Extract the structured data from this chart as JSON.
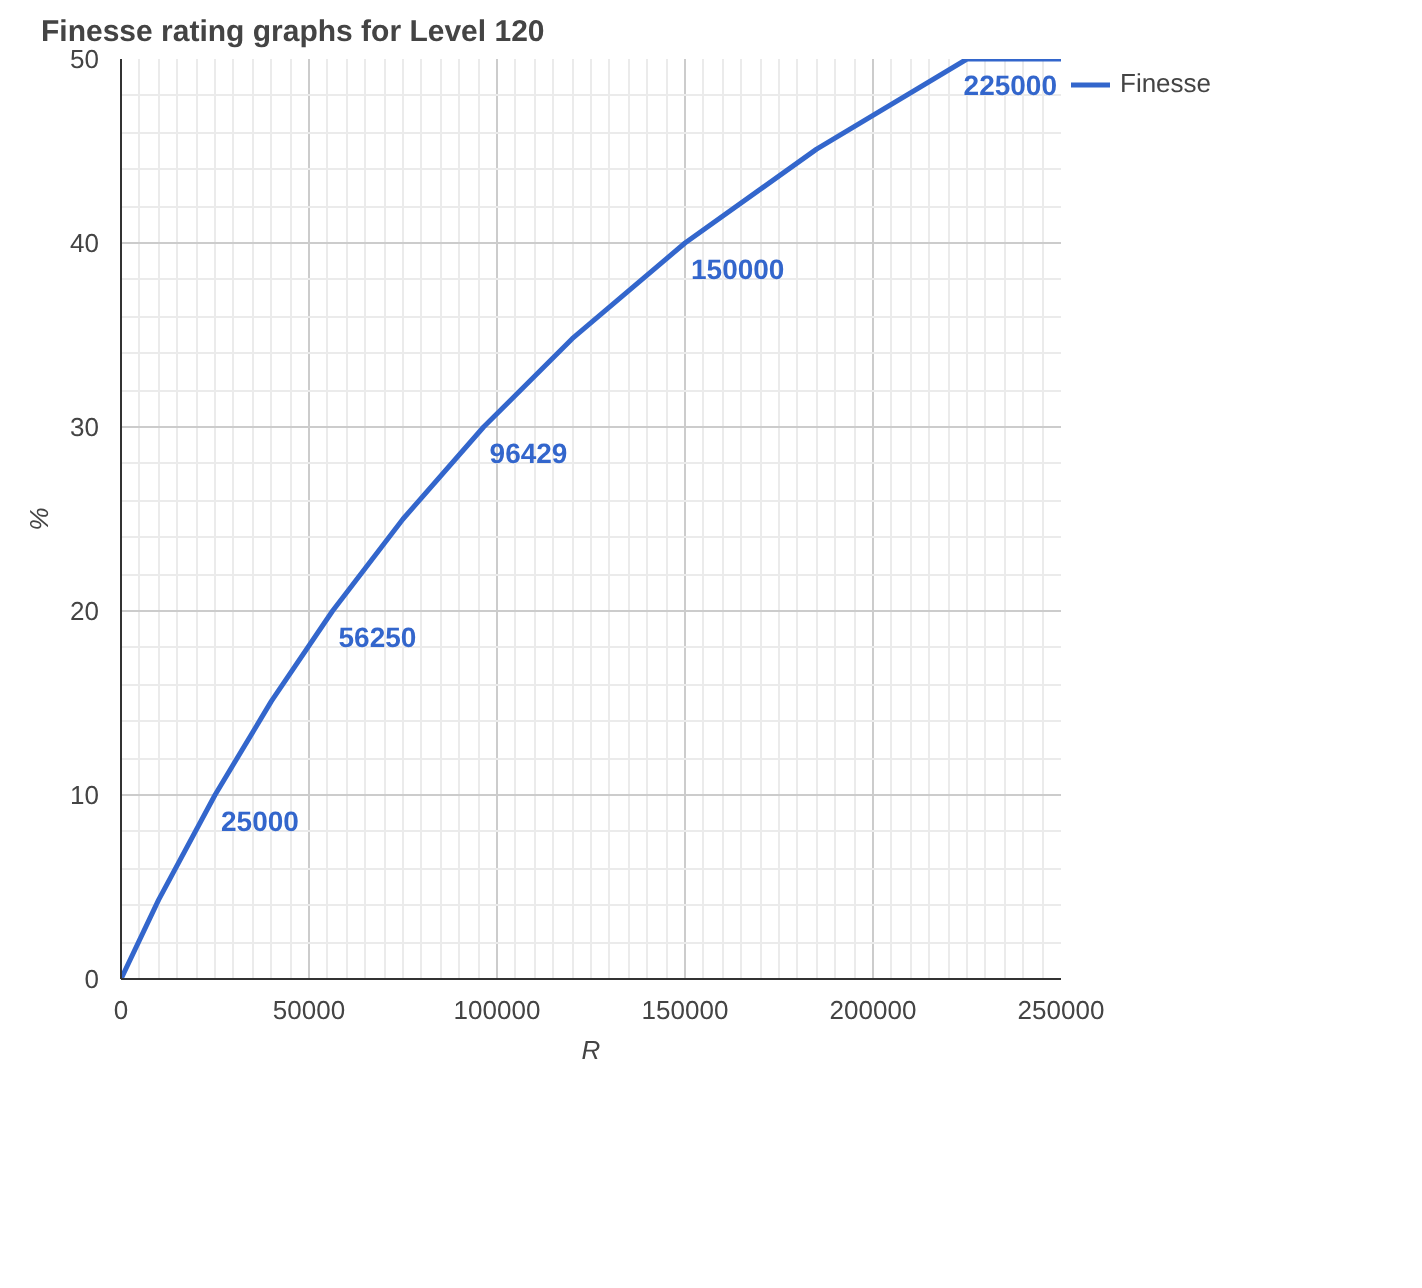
{
  "chart_data": {
    "type": "line",
    "title": "Finesse rating graphs for Level 120",
    "xlabel": "R",
    "ylabel": "%",
    "xlim": [
      0,
      250000
    ],
    "ylim": [
      0,
      50
    ],
    "xticks": [
      0,
      50000,
      100000,
      150000,
      200000,
      250000
    ],
    "yticks": [
      0,
      10,
      20,
      30,
      40,
      50
    ],
    "grid": true,
    "legend": "top right",
    "marker": "none",
    "line_style": "solid",
    "series": [
      {
        "name": "Finesse",
        "color": "#3366cc",
        "x": [
          0,
          10000,
          25000,
          40000,
          56250,
          75000,
          96429,
          120000,
          150000,
          185000,
          225000,
          250000
        ],
        "values": [
          0,
          4.3,
          10,
          15.1,
          20,
          25,
          30,
          34.8,
          40,
          45.1,
          50,
          50
        ]
      }
    ],
    "annotations": [
      {
        "text": "25000",
        "x": 25000,
        "y": 10
      },
      {
        "text": "56250",
        "x": 56250,
        "y": 20
      },
      {
        "text": "96429",
        "x": 96429,
        "y": 30
      },
      {
        "text": "150000",
        "x": 150000,
        "y": 40
      },
      {
        "text": "225000",
        "x": 225000,
        "y": 50
      }
    ]
  }
}
